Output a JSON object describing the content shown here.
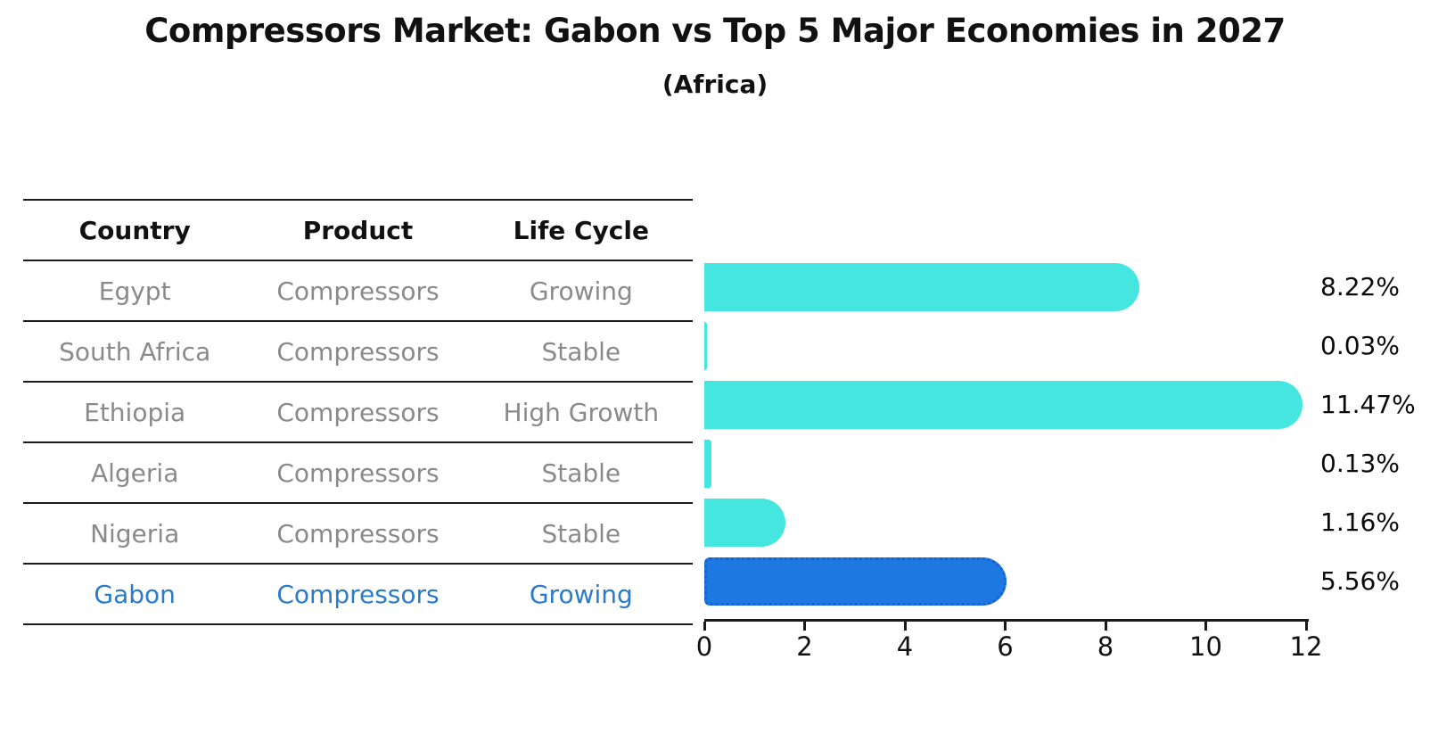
{
  "title": "Compressors Market: Gabon vs Top 5 Major Economies in 2027",
  "subtitle": "(Africa)",
  "table": {
    "headers": [
      "Country",
      "Product",
      "Life Cycle"
    ],
    "rows": [
      {
        "country": "Egypt",
        "product": "Compressors",
        "life_cycle": "Growing",
        "highlight": false
      },
      {
        "country": "South Africa",
        "product": "Compressors",
        "life_cycle": "Stable",
        "highlight": false
      },
      {
        "country": "Ethiopia",
        "product": "Compressors",
        "life_cycle": "High Growth",
        "highlight": false
      },
      {
        "country": "Algeria",
        "product": "Compressors",
        "life_cycle": "Stable",
        "highlight": false
      },
      {
        "country": "Nigeria",
        "product": "Compressors",
        "life_cycle": "Stable",
        "highlight": false
      },
      {
        "country": "Gabon",
        "product": "Compressors",
        "life_cycle": "Growing",
        "highlight": true
      }
    ]
  },
  "chart_data": {
    "type": "bar",
    "orientation": "horizontal",
    "categories": [
      "Egypt",
      "South Africa",
      "Ethiopia",
      "Algeria",
      "Nigeria",
      "Gabon"
    ],
    "values": [
      8.22,
      0.03,
      11.47,
      0.13,
      1.16,
      5.56
    ],
    "labels": [
      "8.22%",
      "0.03%",
      "11.47%",
      "0.13%",
      "1.16%",
      "5.56%"
    ],
    "xlim": [
      0,
      12
    ],
    "xticks": [
      0,
      2,
      4,
      6,
      8,
      10,
      12
    ],
    "grid": false,
    "legend": "none",
    "highlight_index": 5,
    "bar_color": "#45E6E0",
    "highlight_color": "#1E78E2",
    "highlight_border": "#1663CF",
    "value_label_color": "#0a0a0a",
    "axis_color": "#1a1a1a"
  },
  "colors": {
    "background": "#ffffff",
    "table_text": "#8a8a8a",
    "table_highlight_text": "#2b7bc9",
    "heading_text": "#111111",
    "line": "#1a1a1a"
  }
}
